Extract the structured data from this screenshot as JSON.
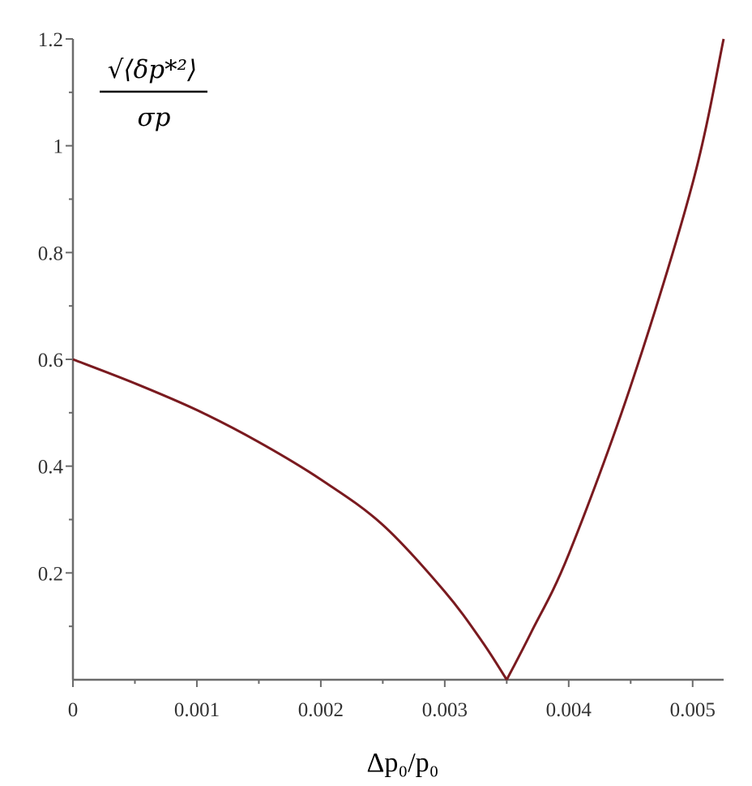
{
  "chart_data": {
    "type": "line",
    "title": "",
    "xlabel": "Δp₀/p₀",
    "ylabel": {
      "numerator": "√⟨δp*²⟩",
      "denominator": "σp"
    },
    "xlim": [
      0,
      0.00525
    ],
    "ylim": [
      0,
      1.2
    ],
    "grid": false,
    "legend": "none",
    "x_ticks": [
      0,
      0.001,
      0.002,
      0.003,
      0.004,
      0.005
    ],
    "x_tick_labels": [
      "0",
      "0.001",
      "0.002",
      "0.003",
      "0.004",
      "0.005"
    ],
    "y_ticks": [
      0.2,
      0.4,
      0.6,
      0.8,
      1.0,
      1.2
    ],
    "y_tick_labels": [
      "0.2",
      "0.4",
      "0.6",
      "0.8",
      "1",
      "1.2"
    ],
    "series": [
      {
        "color": "#7a1a1f",
        "x": [
          0,
          0.0005,
          0.001,
          0.0015,
          0.002,
          0.0025,
          0.003,
          0.0033,
          0.0035,
          0.0037,
          0.004,
          0.0045,
          0.005,
          0.00525
        ],
        "y": [
          0.6,
          0.555,
          0.505,
          0.445,
          0.375,
          0.29,
          0.165,
          0.072,
          0.0,
          0.09,
          0.235,
          0.55,
          0.93,
          1.2
        ]
      }
    ]
  }
}
